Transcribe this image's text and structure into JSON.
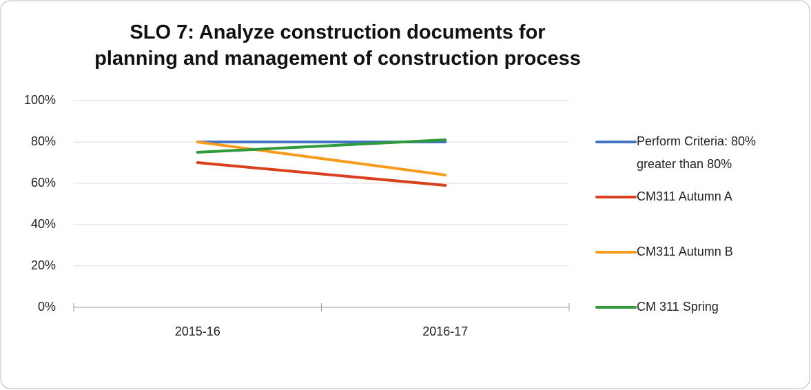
{
  "chart_data": {
    "type": "line",
    "title": "SLO 7: Analyze construction documents for planning and management of construction process",
    "categories": [
      "2015-16",
      "2016-17"
    ],
    "series": [
      {
        "name": "Perform Criteria: 80% greater than 80%",
        "color": "#4472c4",
        "values": [
          80,
          80
        ]
      },
      {
        "name": "CM311 Autumn A",
        "color": "#d9411e",
        "values": [
          70,
          59
        ]
      },
      {
        "name": "CM311 Autumn B",
        "color": "#f89c1c",
        "values": [
          80,
          64
        ]
      },
      {
        "name": "CM 311 Spring",
        "color": "#2e9a3a",
        "values": [
          75,
          81
        ]
      }
    ],
    "ylim": [
      0,
      100
    ],
    "yticks": [
      {
        "value": 0,
        "label": "0%"
      },
      {
        "value": 20,
        "label": "20%"
      },
      {
        "value": 40,
        "label": "40%"
      },
      {
        "value": 60,
        "label": "60%"
      },
      {
        "value": 80,
        "label": "80%"
      },
      {
        "value": 100,
        "label": "100%"
      }
    ],
    "grid": true,
    "legend": "right"
  }
}
